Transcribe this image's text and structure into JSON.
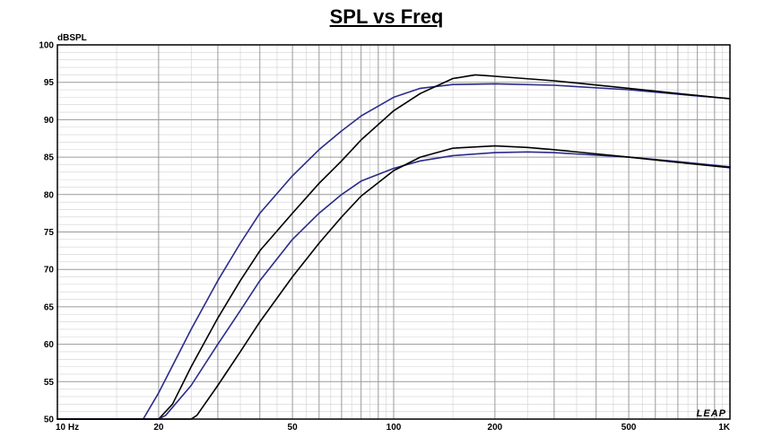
{
  "chart_data": {
    "type": "line",
    "title": "SPL vs Freq",
    "ylabel": "dBSPL",
    "xlabel": "",
    "x_scale": "log",
    "xlim": [
      10,
      1000
    ],
    "ylim": [
      50,
      100
    ],
    "grid": true,
    "x_tick_labels": [
      {
        "value": 10,
        "label": "10 Hz"
      },
      {
        "value": 20,
        "label": "20"
      },
      {
        "value": 50,
        "label": "50"
      },
      {
        "value": 100,
        "label": "100"
      },
      {
        "value": 200,
        "label": "200"
      },
      {
        "value": 500,
        "label": "500"
      },
      {
        "value": 1000,
        "label": "1K"
      }
    ],
    "y_ticks": [
      50,
      55,
      60,
      65,
      70,
      75,
      80,
      85,
      90,
      95,
      100
    ],
    "watermark": "LEAP",
    "series": [
      {
        "color": "#2b2b8a",
        "points": [
          [
            10,
            50
          ],
          [
            15,
            50
          ],
          [
            18,
            50
          ],
          [
            20,
            53.5
          ],
          [
            25,
            62
          ],
          [
            30,
            68.5
          ],
          [
            35,
            73.5
          ],
          [
            40,
            77.5
          ],
          [
            50,
            82.5
          ],
          [
            60,
            86
          ],
          [
            70,
            88.5
          ],
          [
            80,
            90.5
          ],
          [
            100,
            93
          ],
          [
            120,
            94.2
          ],
          [
            150,
            94.7
          ],
          [
            200,
            94.8
          ],
          [
            300,
            94.6
          ],
          [
            500,
            94
          ],
          [
            700,
            93.4
          ],
          [
            1000,
            92.8
          ]
        ]
      },
      {
        "color": "#000000",
        "points": [
          [
            10,
            50
          ],
          [
            18,
            50
          ],
          [
            20,
            50
          ],
          [
            22,
            52
          ],
          [
            25,
            57
          ],
          [
            30,
            63.5
          ],
          [
            35,
            68.5
          ],
          [
            40,
            72.5
          ],
          [
            50,
            77.5
          ],
          [
            60,
            81.5
          ],
          [
            70,
            84.5
          ],
          [
            80,
            87.3
          ],
          [
            100,
            91.2
          ],
          [
            120,
            93.5
          ],
          [
            150,
            95.5
          ],
          [
            175,
            96
          ],
          [
            200,
            95.8
          ],
          [
            300,
            95.2
          ],
          [
            500,
            94.2
          ],
          [
            700,
            93.5
          ],
          [
            1000,
            92.8
          ]
        ]
      },
      {
        "color": "#2b2b8a",
        "points": [
          [
            10,
            50
          ],
          [
            20,
            50
          ],
          [
            21,
            50.5
          ],
          [
            25,
            54.5
          ],
          [
            30,
            60
          ],
          [
            35,
            64.5
          ],
          [
            40,
            68.5
          ],
          [
            50,
            74
          ],
          [
            60,
            77.5
          ],
          [
            70,
            80
          ],
          [
            80,
            81.8
          ],
          [
            100,
            83.5
          ],
          [
            120,
            84.5
          ],
          [
            150,
            85.2
          ],
          [
            200,
            85.6
          ],
          [
            250,
            85.7
          ],
          [
            300,
            85.6
          ],
          [
            500,
            85
          ],
          [
            700,
            84.4
          ],
          [
            1000,
            83.7
          ]
        ]
      },
      {
        "color": "#000000",
        "points": [
          [
            10,
            50
          ],
          [
            25,
            50
          ],
          [
            26,
            50.5
          ],
          [
            30,
            54.5
          ],
          [
            35,
            59
          ],
          [
            40,
            63
          ],
          [
            50,
            69
          ],
          [
            60,
            73.5
          ],
          [
            70,
            77
          ],
          [
            80,
            79.8
          ],
          [
            100,
            83.2
          ],
          [
            120,
            85
          ],
          [
            150,
            86.2
          ],
          [
            200,
            86.5
          ],
          [
            250,
            86.3
          ],
          [
            300,
            86
          ],
          [
            500,
            85
          ],
          [
            700,
            84.3
          ],
          [
            1000,
            83.6
          ]
        ]
      }
    ]
  }
}
